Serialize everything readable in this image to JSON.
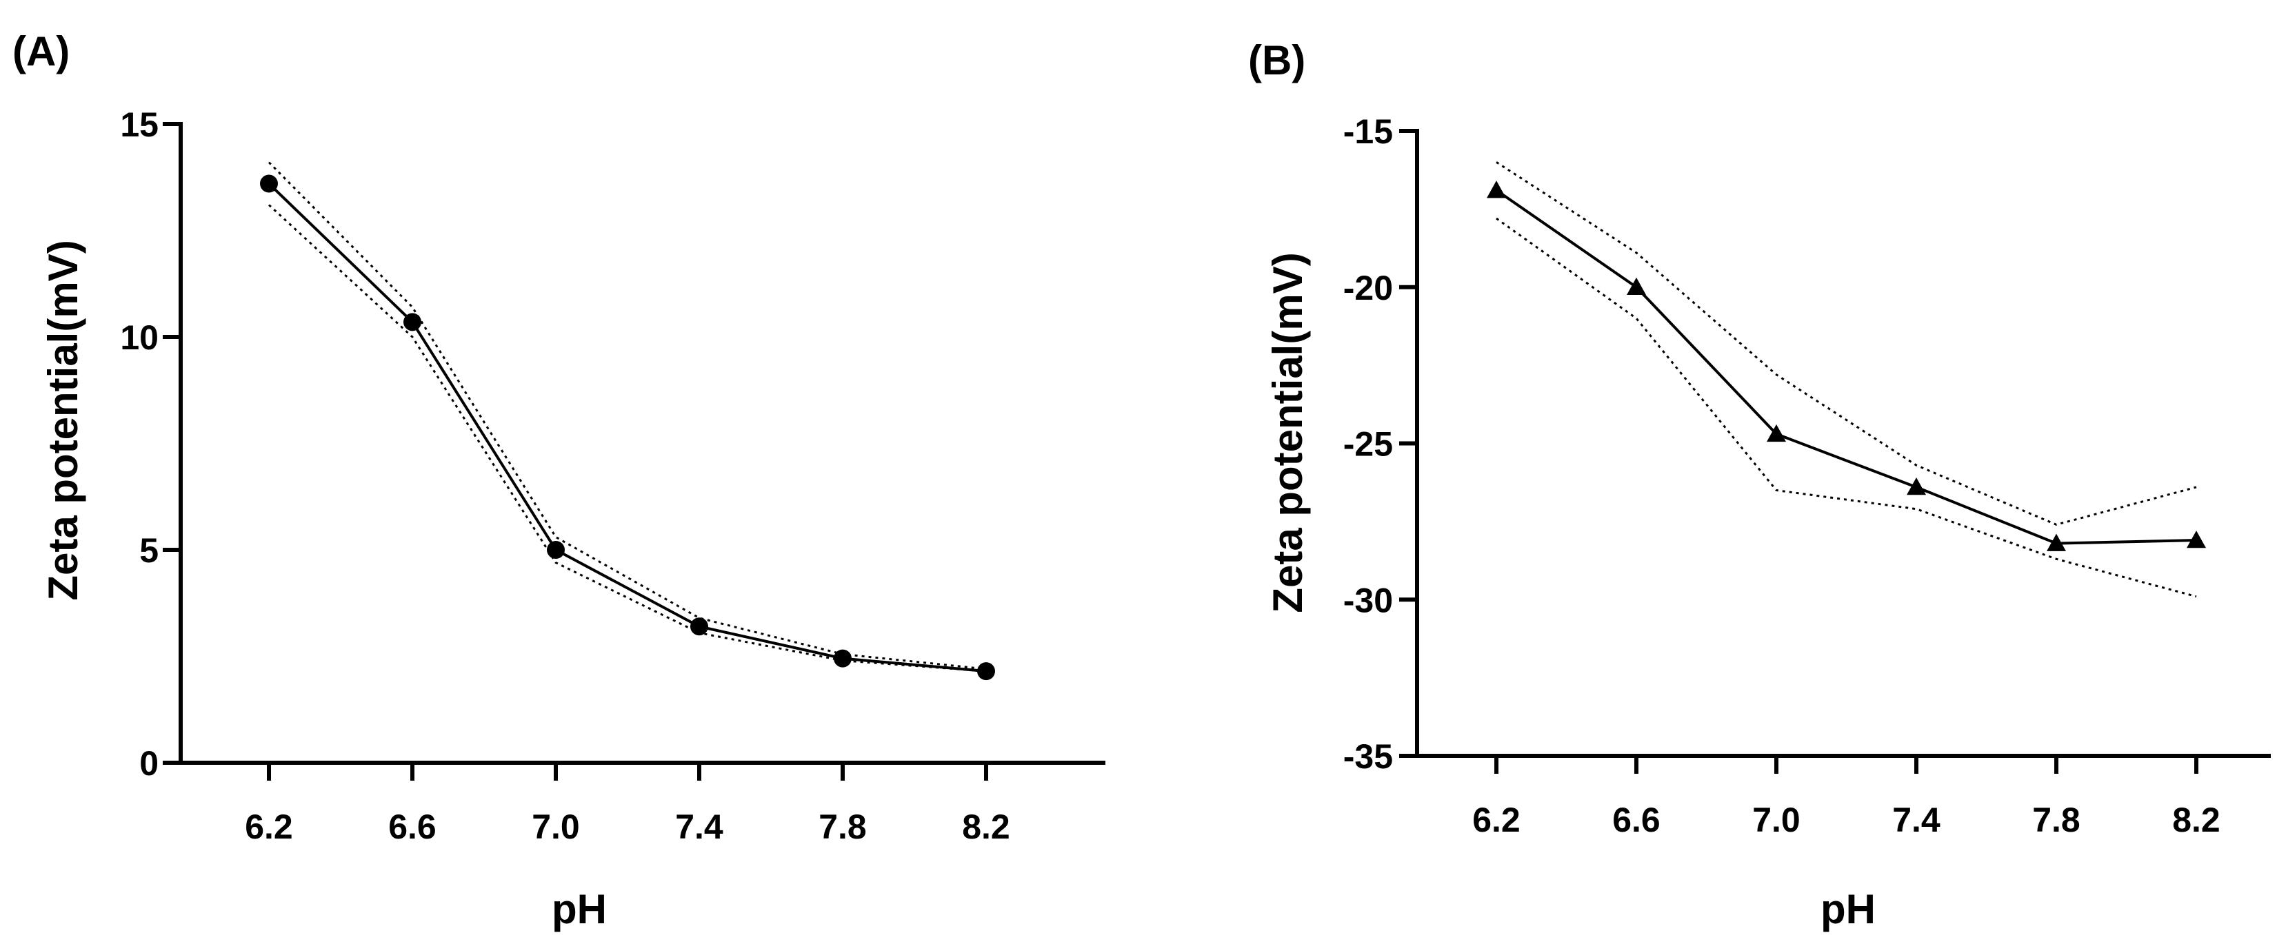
{
  "chart_data": [
    {
      "type": "line",
      "panel_label": "(A)",
      "title": "",
      "xlabel": "pH",
      "ylabel": "Zeta potential(mV)",
      "x": [
        6.2,
        6.6,
        7.0,
        7.4,
        7.8,
        8.2
      ],
      "x_tick_labels": [
        "6.2",
        "6.6",
        "7.0",
        "7.4",
        "7.8",
        "8.2"
      ],
      "y_ticks": [
        0,
        5,
        10,
        15
      ],
      "y_tick_labels": [
        "0",
        "5",
        "10",
        "15"
      ],
      "ylim": [
        0,
        15
      ],
      "marker": "circle",
      "series": [
        {
          "name": "mean",
          "style": "solid",
          "values": [
            13.6,
            10.35,
            5.0,
            3.2,
            2.45,
            2.15
          ]
        },
        {
          "name": "upper",
          "style": "dotted",
          "values": [
            14.1,
            10.7,
            5.3,
            3.4,
            2.55,
            2.2
          ]
        },
        {
          "name": "lower",
          "style": "dotted",
          "values": [
            13.1,
            10.0,
            4.7,
            3.05,
            2.4,
            2.15
          ]
        }
      ]
    },
    {
      "type": "line",
      "panel_label": "(B)",
      "title": "",
      "xlabel": "pH",
      "ylabel": "Zeta potential(mV)",
      "x": [
        6.2,
        6.6,
        7.0,
        7.4,
        7.8,
        8.2
      ],
      "x_tick_labels": [
        "6.2",
        "6.6",
        "7.0",
        "7.4",
        "7.8",
        "8.2"
      ],
      "y_ticks": [
        -35,
        -30,
        -25,
        -20,
        -15
      ],
      "y_tick_labels": [
        "-35",
        "-30",
        "-25",
        "-20",
        "-15"
      ],
      "ylim": [
        -35,
        -15
      ],
      "marker": "triangle",
      "series": [
        {
          "name": "mean",
          "style": "solid",
          "values": [
            -16.9,
            -20.0,
            -24.7,
            -26.4,
            -28.2,
            -28.1
          ]
        },
        {
          "name": "upper",
          "style": "dotted",
          "values": [
            -16.0,
            -18.9,
            -22.8,
            -25.7,
            -27.6,
            -26.4
          ]
        },
        {
          "name": "lower",
          "style": "dotted",
          "values": [
            -17.8,
            -21.0,
            -26.5,
            -27.1,
            -28.7,
            -29.9
          ]
        }
      ]
    }
  ]
}
